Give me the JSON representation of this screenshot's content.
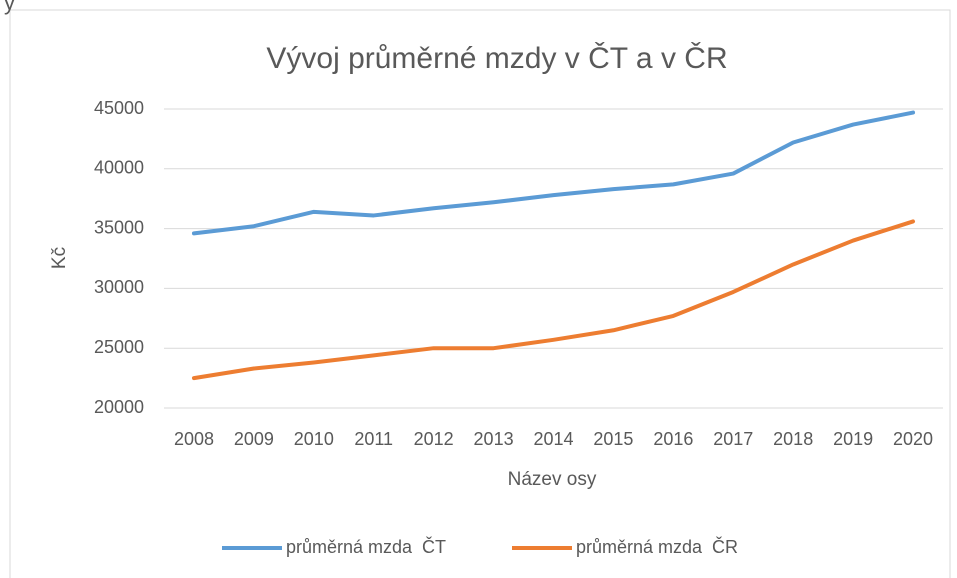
{
  "fragment": "y",
  "chart_data": {
    "type": "line",
    "title": "Vývoj průměrné mzdy v ČT a v ČR",
    "x_label": "Název osy",
    "y_label": "Kč",
    "categories": [
      "2008",
      "2009",
      "2010",
      "2011",
      "2012",
      "2013",
      "2014",
      "2015",
      "2016",
      "2017",
      "2018",
      "2019",
      "2020"
    ],
    "series": [
      {
        "name": "průměrná mzda  ČT",
        "color": "#5b9bd5",
        "values": [
          34600,
          35200,
          36400,
          36100,
          36700,
          37200,
          37800,
          38300,
          38700,
          39600,
          42200,
          43700,
          44700
        ]
      },
      {
        "name": "průměrná mzda  ČR",
        "color": "#ed7d31",
        "values": [
          22500,
          23300,
          23800,
          24400,
          25000,
          25000,
          25700,
          26500,
          27700,
          29700,
          32000,
          34000,
          35600
        ]
      }
    ],
    "ylim": [
      20000,
      45000
    ],
    "yticks": [
      20000,
      25000,
      30000,
      35000,
      40000,
      45000
    ],
    "grid": true,
    "legend": "bottom"
  }
}
